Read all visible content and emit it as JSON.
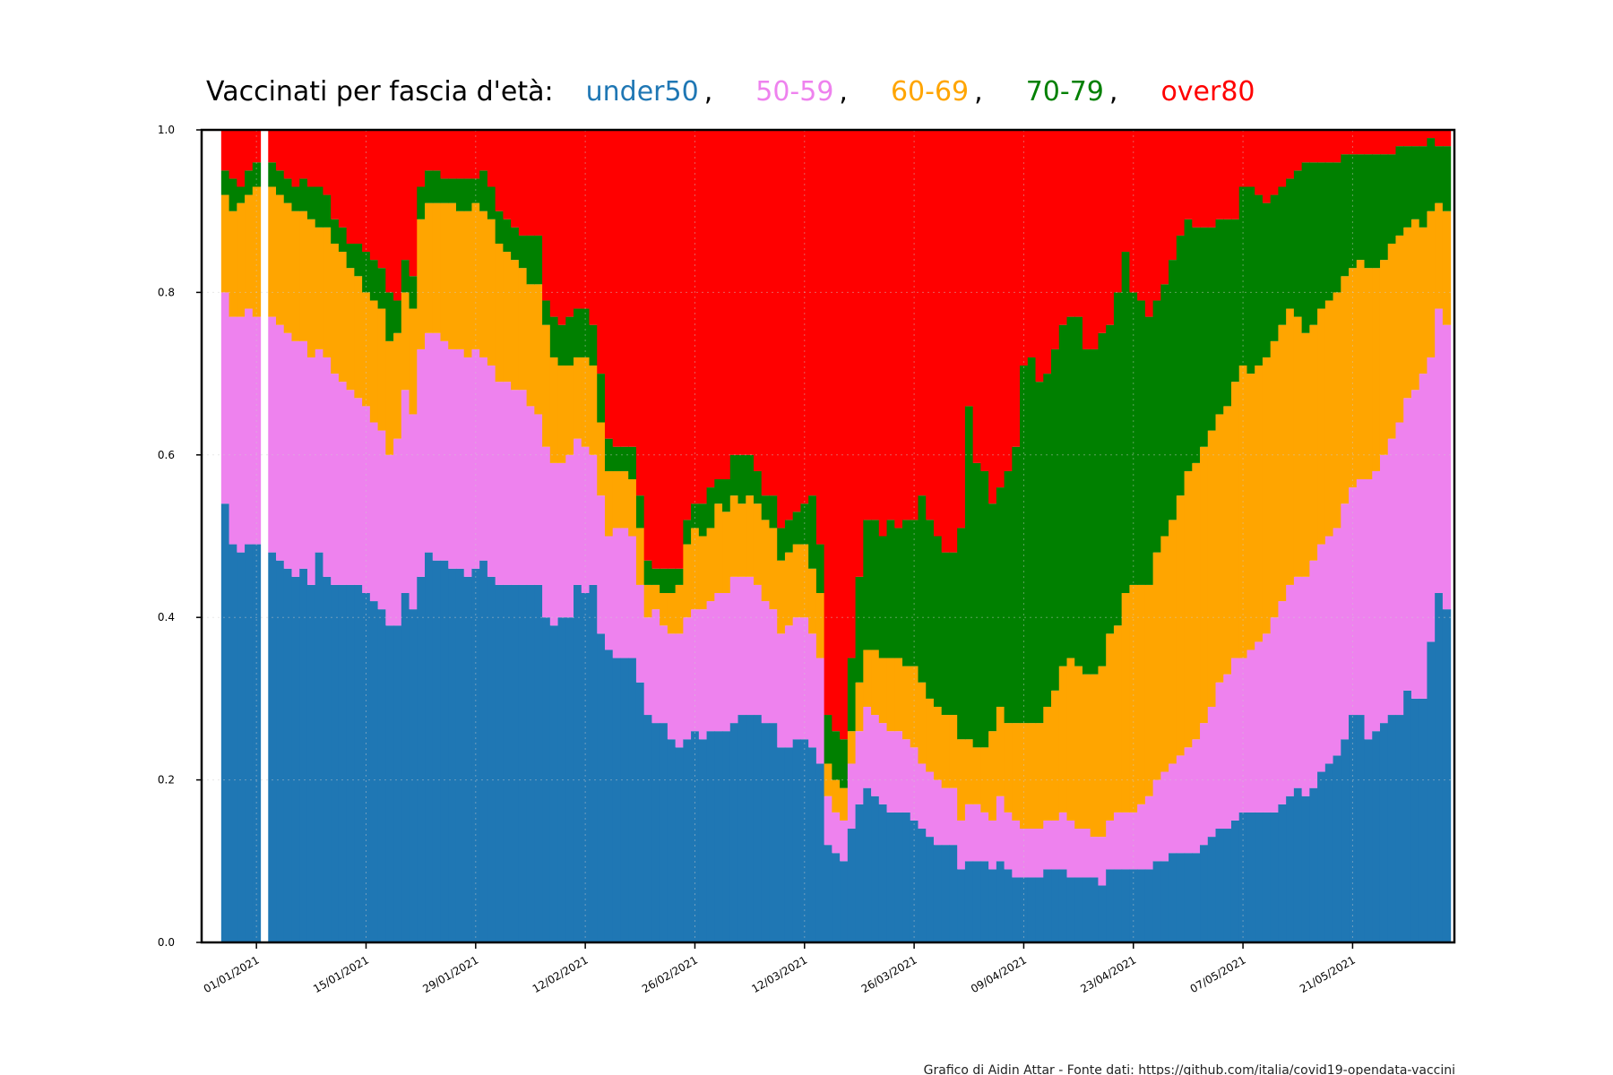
{
  "chart_data": {
    "type": "area",
    "stacked": true,
    "normalized": true,
    "title": {
      "prefix": "Vaccinati per fascia d'età:",
      "separator": ",",
      "items": [
        "under50",
        "50-59",
        "60-69",
        "70-79",
        "over80"
      ]
    },
    "credit": "Grafico di Aidin Attar - Fonte dati: https://github.com/italia/covid19-opendata-vaccini",
    "y_ticks": [
      "0.0",
      "0.2",
      "0.4",
      "0.6",
      "0.8",
      "1.0"
    ],
    "x_ticks": [
      {
        "date": "2021-01-01",
        "label": "01/01/2021"
      },
      {
        "date": "2021-01-15",
        "label": "15/01/2021"
      },
      {
        "date": "2021-01-29",
        "label": "29/01/2021"
      },
      {
        "date": "2021-02-12",
        "label": "12/02/2021"
      },
      {
        "date": "2021-02-26",
        "label": "26/02/2021"
      },
      {
        "date": "2021-03-12",
        "label": "12/03/2021"
      },
      {
        "date": "2021-03-26",
        "label": "26/03/2021"
      },
      {
        "date": "2021-04-09",
        "label": "09/04/2021"
      },
      {
        "date": "2021-04-23",
        "label": "23/04/2021"
      },
      {
        "date": "2021-05-07",
        "label": "07/05/2021"
      },
      {
        "date": "2021-05-21",
        "label": "21/05/2021"
      }
    ],
    "xlim": [
      "2020-12-25",
      "2021-06-03"
    ],
    "ylim": [
      0,
      1
    ],
    "grid": true,
    "gaps": [
      "2021-01-02"
    ],
    "series": [
      {
        "name": "under50",
        "color": "#1f77b4"
      },
      {
        "name": "50-59",
        "color": "#ee82ee"
      },
      {
        "name": "60-69",
        "color": "#ffa500"
      },
      {
        "name": "70-79",
        "color": "#008000"
      },
      {
        "name": "over80",
        "color": "#ff0000"
      }
    ],
    "boundary_note": "cumulative share at top of under50, 50-59, 60-69, 70-79; over80 fills to 1.0",
    "dates_start": "2020-12-28",
    "dates_end": "2021-06-02",
    "cumulative": [
      [
        "2020-12-28",
        0.54,
        0.8,
        0.92,
        0.95
      ],
      [
        "2020-12-29",
        0.49,
        0.77,
        0.9,
        0.94
      ],
      [
        "2020-12-30",
        0.48,
        0.77,
        0.91,
        0.93
      ],
      [
        "2020-12-31",
        0.49,
        0.78,
        0.92,
        0.95
      ],
      [
        "2021-01-01",
        0.49,
        0.77,
        0.93,
        0.96
      ],
      [
        "2021-01-03",
        0.48,
        0.77,
        0.93,
        0.96
      ],
      [
        "2021-01-04",
        0.47,
        0.76,
        0.92,
        0.95
      ],
      [
        "2021-01-05",
        0.46,
        0.75,
        0.91,
        0.94
      ],
      [
        "2021-01-06",
        0.45,
        0.74,
        0.9,
        0.93
      ],
      [
        "2021-01-07",
        0.46,
        0.74,
        0.9,
        0.94
      ],
      [
        "2021-01-08",
        0.44,
        0.72,
        0.89,
        0.93
      ],
      [
        "2021-01-09",
        0.48,
        0.73,
        0.88,
        0.93
      ],
      [
        "2021-01-10",
        0.45,
        0.72,
        0.88,
        0.92
      ],
      [
        "2021-01-11",
        0.44,
        0.7,
        0.86,
        0.89
      ],
      [
        "2021-01-12",
        0.44,
        0.69,
        0.85,
        0.88
      ],
      [
        "2021-01-13",
        0.44,
        0.68,
        0.83,
        0.86
      ],
      [
        "2021-01-14",
        0.44,
        0.67,
        0.82,
        0.86
      ],
      [
        "2021-01-15",
        0.43,
        0.66,
        0.8,
        0.85
      ],
      [
        "2021-01-16",
        0.42,
        0.64,
        0.79,
        0.84
      ],
      [
        "2021-01-17",
        0.41,
        0.63,
        0.78,
        0.83
      ],
      [
        "2021-01-18",
        0.39,
        0.6,
        0.74,
        0.8
      ],
      [
        "2021-01-19",
        0.39,
        0.62,
        0.75,
        0.79
      ],
      [
        "2021-01-20",
        0.43,
        0.68,
        0.8,
        0.84
      ],
      [
        "2021-01-21",
        0.41,
        0.65,
        0.78,
        0.82
      ],
      [
        "2021-01-22",
        0.45,
        0.73,
        0.89,
        0.93
      ],
      [
        "2021-01-23",
        0.48,
        0.75,
        0.91,
        0.95
      ],
      [
        "2021-01-24",
        0.47,
        0.75,
        0.91,
        0.95
      ],
      [
        "2021-01-25",
        0.47,
        0.74,
        0.91,
        0.94
      ],
      [
        "2021-01-26",
        0.46,
        0.73,
        0.91,
        0.94
      ],
      [
        "2021-01-27",
        0.46,
        0.73,
        0.9,
        0.94
      ],
      [
        "2021-01-28",
        0.45,
        0.72,
        0.9,
        0.94
      ],
      [
        "2021-01-29",
        0.46,
        0.73,
        0.91,
        0.94
      ],
      [
        "2021-01-30",
        0.47,
        0.72,
        0.9,
        0.95
      ],
      [
        "2021-01-31",
        0.45,
        0.71,
        0.89,
        0.93
      ],
      [
        "2021-02-01",
        0.44,
        0.69,
        0.86,
        0.9
      ],
      [
        "2021-02-02",
        0.44,
        0.69,
        0.85,
        0.89
      ],
      [
        "2021-02-03",
        0.44,
        0.68,
        0.84,
        0.88
      ],
      [
        "2021-02-04",
        0.44,
        0.68,
        0.83,
        0.87
      ],
      [
        "2021-02-05",
        0.44,
        0.66,
        0.81,
        0.87
      ],
      [
        "2021-02-06",
        0.44,
        0.65,
        0.81,
        0.87
      ],
      [
        "2021-02-07",
        0.4,
        0.61,
        0.76,
        0.79
      ],
      [
        "2021-02-08",
        0.39,
        0.59,
        0.72,
        0.77
      ],
      [
        "2021-02-09",
        0.4,
        0.59,
        0.71,
        0.76
      ],
      [
        "2021-02-10",
        0.4,
        0.6,
        0.71,
        0.77
      ],
      [
        "2021-02-11",
        0.44,
        0.62,
        0.72,
        0.78
      ],
      [
        "2021-02-12",
        0.43,
        0.61,
        0.72,
        0.78
      ],
      [
        "2021-02-13",
        0.44,
        0.6,
        0.71,
        0.76
      ],
      [
        "2021-02-14",
        0.38,
        0.55,
        0.64,
        0.7
      ],
      [
        "2021-02-15",
        0.36,
        0.5,
        0.58,
        0.62
      ],
      [
        "2021-02-16",
        0.35,
        0.51,
        0.58,
        0.61
      ],
      [
        "2021-02-17",
        0.35,
        0.51,
        0.58,
        0.61
      ],
      [
        "2021-02-18",
        0.35,
        0.5,
        0.57,
        0.61
      ],
      [
        "2021-02-19",
        0.32,
        0.44,
        0.51,
        0.55
      ],
      [
        "2021-02-20",
        0.28,
        0.4,
        0.44,
        0.47
      ],
      [
        "2021-02-21",
        0.27,
        0.41,
        0.44,
        0.46
      ],
      [
        "2021-02-22",
        0.27,
        0.39,
        0.43,
        0.46
      ],
      [
        "2021-02-23",
        0.25,
        0.38,
        0.43,
        0.46
      ],
      [
        "2021-02-24",
        0.24,
        0.38,
        0.44,
        0.46
      ],
      [
        "2021-02-25",
        0.25,
        0.4,
        0.49,
        0.52
      ],
      [
        "2021-02-26",
        0.26,
        0.41,
        0.51,
        0.54
      ],
      [
        "2021-02-27",
        0.25,
        0.41,
        0.5,
        0.54
      ],
      [
        "2021-02-28",
        0.26,
        0.42,
        0.51,
        0.56
      ],
      [
        "2021-03-01",
        0.26,
        0.43,
        0.54,
        0.57
      ],
      [
        "2021-03-02",
        0.26,
        0.43,
        0.53,
        0.57
      ],
      [
        "2021-03-03",
        0.27,
        0.45,
        0.55,
        0.6
      ],
      [
        "2021-03-04",
        0.28,
        0.45,
        0.54,
        0.6
      ],
      [
        "2021-03-05",
        0.28,
        0.45,
        0.55,
        0.6
      ],
      [
        "2021-03-06",
        0.28,
        0.44,
        0.54,
        0.58
      ],
      [
        "2021-03-07",
        0.27,
        0.42,
        0.52,
        0.55
      ],
      [
        "2021-03-08",
        0.27,
        0.41,
        0.51,
        0.55
      ],
      [
        "2021-03-09",
        0.24,
        0.38,
        0.47,
        0.51
      ],
      [
        "2021-03-10",
        0.24,
        0.39,
        0.48,
        0.52
      ],
      [
        "2021-03-11",
        0.25,
        0.4,
        0.49,
        0.53
      ],
      [
        "2021-03-12",
        0.25,
        0.4,
        0.49,
        0.54
      ],
      [
        "2021-03-13",
        0.24,
        0.38,
        0.46,
        0.55
      ],
      [
        "2021-03-14",
        0.22,
        0.35,
        0.43,
        0.49
      ],
      [
        "2021-03-15",
        0.12,
        0.18,
        0.22,
        0.28
      ],
      [
        "2021-03-16",
        0.11,
        0.16,
        0.2,
        0.26
      ],
      [
        "2021-03-17",
        0.1,
        0.15,
        0.19,
        0.25
      ],
      [
        "2021-03-18",
        0.14,
        0.22,
        0.26,
        0.35
      ],
      [
        "2021-03-19",
        0.17,
        0.26,
        0.32,
        0.45
      ],
      [
        "2021-03-20",
        0.19,
        0.29,
        0.36,
        0.52
      ],
      [
        "2021-03-21",
        0.18,
        0.28,
        0.36,
        0.52
      ],
      [
        "2021-03-22",
        0.17,
        0.27,
        0.35,
        0.5
      ],
      [
        "2021-03-23",
        0.16,
        0.26,
        0.35,
        0.52
      ],
      [
        "2021-03-24",
        0.16,
        0.26,
        0.35,
        0.51
      ],
      [
        "2021-03-25",
        0.16,
        0.25,
        0.34,
        0.52
      ],
      [
        "2021-03-26",
        0.15,
        0.24,
        0.34,
        0.52
      ],
      [
        "2021-03-27",
        0.14,
        0.22,
        0.32,
        0.55
      ],
      [
        "2021-03-28",
        0.13,
        0.21,
        0.3,
        0.52
      ],
      [
        "2021-03-29",
        0.12,
        0.2,
        0.29,
        0.5
      ],
      [
        "2021-03-30",
        0.12,
        0.19,
        0.28,
        0.48
      ],
      [
        "2021-03-31",
        0.12,
        0.19,
        0.28,
        0.48
      ],
      [
        "2021-04-01",
        0.09,
        0.15,
        0.25,
        0.51
      ],
      [
        "2021-04-02",
        0.1,
        0.17,
        0.25,
        0.66
      ],
      [
        "2021-04-03",
        0.1,
        0.17,
        0.24,
        0.59
      ],
      [
        "2021-04-04",
        0.1,
        0.16,
        0.24,
        0.58
      ],
      [
        "2021-04-05",
        0.09,
        0.15,
        0.26,
        0.54
      ],
      [
        "2021-04-06",
        0.1,
        0.18,
        0.29,
        0.56
      ],
      [
        "2021-04-07",
        0.09,
        0.16,
        0.27,
        0.58
      ],
      [
        "2021-04-08",
        0.08,
        0.15,
        0.27,
        0.61
      ],
      [
        "2021-04-09",
        0.08,
        0.14,
        0.27,
        0.71
      ],
      [
        "2021-04-10",
        0.08,
        0.14,
        0.27,
        0.72
      ],
      [
        "2021-04-11",
        0.08,
        0.14,
        0.27,
        0.69
      ],
      [
        "2021-04-12",
        0.09,
        0.15,
        0.29,
        0.7
      ],
      [
        "2021-04-13",
        0.09,
        0.15,
        0.31,
        0.73
      ],
      [
        "2021-04-14",
        0.09,
        0.16,
        0.34,
        0.76
      ],
      [
        "2021-04-15",
        0.08,
        0.15,
        0.35,
        0.77
      ],
      [
        "2021-04-16",
        0.08,
        0.14,
        0.34,
        0.77
      ],
      [
        "2021-04-17",
        0.08,
        0.14,
        0.33,
        0.73
      ],
      [
        "2021-04-18",
        0.08,
        0.13,
        0.33,
        0.73
      ],
      [
        "2021-04-19",
        0.07,
        0.13,
        0.34,
        0.75
      ],
      [
        "2021-04-20",
        0.09,
        0.15,
        0.38,
        0.76
      ],
      [
        "2021-04-21",
        0.09,
        0.16,
        0.39,
        0.8
      ],
      [
        "2021-04-22",
        0.09,
        0.16,
        0.43,
        0.85
      ],
      [
        "2021-04-23",
        0.09,
        0.16,
        0.44,
        0.8
      ],
      [
        "2021-04-24",
        0.09,
        0.17,
        0.44,
        0.79
      ],
      [
        "2021-04-25",
        0.09,
        0.18,
        0.44,
        0.77
      ],
      [
        "2021-04-26",
        0.1,
        0.2,
        0.48,
        0.79
      ],
      [
        "2021-04-27",
        0.1,
        0.21,
        0.5,
        0.81
      ],
      [
        "2021-04-28",
        0.11,
        0.22,
        0.52,
        0.84
      ],
      [
        "2021-04-29",
        0.11,
        0.23,
        0.55,
        0.87
      ],
      [
        "2021-04-30",
        0.11,
        0.24,
        0.58,
        0.89
      ],
      [
        "2021-05-01",
        0.11,
        0.25,
        0.59,
        0.88
      ],
      [
        "2021-05-02",
        0.12,
        0.27,
        0.61,
        0.88
      ],
      [
        "2021-05-03",
        0.13,
        0.29,
        0.63,
        0.88
      ],
      [
        "2021-05-04",
        0.14,
        0.32,
        0.65,
        0.89
      ],
      [
        "2021-05-05",
        0.14,
        0.33,
        0.66,
        0.89
      ],
      [
        "2021-05-06",
        0.15,
        0.35,
        0.69,
        0.89
      ],
      [
        "2021-05-07",
        0.16,
        0.35,
        0.71,
        0.93
      ],
      [
        "2021-05-08",
        0.16,
        0.36,
        0.7,
        0.93
      ],
      [
        "2021-05-09",
        0.16,
        0.37,
        0.71,
        0.92
      ],
      [
        "2021-05-10",
        0.16,
        0.38,
        0.72,
        0.91
      ],
      [
        "2021-05-11",
        0.16,
        0.4,
        0.74,
        0.92
      ],
      [
        "2021-05-12",
        0.17,
        0.42,
        0.76,
        0.93
      ],
      [
        "2021-05-13",
        0.18,
        0.44,
        0.78,
        0.94
      ],
      [
        "2021-05-14",
        0.19,
        0.45,
        0.77,
        0.95
      ],
      [
        "2021-05-15",
        0.18,
        0.45,
        0.75,
        0.96
      ],
      [
        "2021-05-16",
        0.19,
        0.47,
        0.76,
        0.96
      ],
      [
        "2021-05-17",
        0.21,
        0.49,
        0.78,
        0.96
      ],
      [
        "2021-05-18",
        0.22,
        0.5,
        0.79,
        0.96
      ],
      [
        "2021-05-19",
        0.23,
        0.51,
        0.8,
        0.96
      ],
      [
        "2021-05-20",
        0.25,
        0.54,
        0.82,
        0.97
      ],
      [
        "2021-05-21",
        0.28,
        0.56,
        0.83,
        0.97
      ],
      [
        "2021-05-22",
        0.28,
        0.57,
        0.84,
        0.97
      ],
      [
        "2021-05-23",
        0.25,
        0.57,
        0.83,
        0.97
      ],
      [
        "2021-05-24",
        0.26,
        0.58,
        0.83,
        0.97
      ],
      [
        "2021-05-25",
        0.27,
        0.6,
        0.84,
        0.97
      ],
      [
        "2021-05-26",
        0.28,
        0.62,
        0.86,
        0.97
      ],
      [
        "2021-05-27",
        0.28,
        0.64,
        0.87,
        0.98
      ],
      [
        "2021-05-28",
        0.31,
        0.67,
        0.88,
        0.98
      ],
      [
        "2021-05-29",
        0.3,
        0.68,
        0.89,
        0.98
      ],
      [
        "2021-05-30",
        0.3,
        0.7,
        0.88,
        0.98
      ],
      [
        "2021-05-31",
        0.37,
        0.72,
        0.9,
        0.99
      ],
      [
        "2021-06-01",
        0.43,
        0.78,
        0.91,
        0.98
      ],
      [
        "2021-06-02",
        0.41,
        0.76,
        0.9,
        0.98
      ]
    ]
  }
}
